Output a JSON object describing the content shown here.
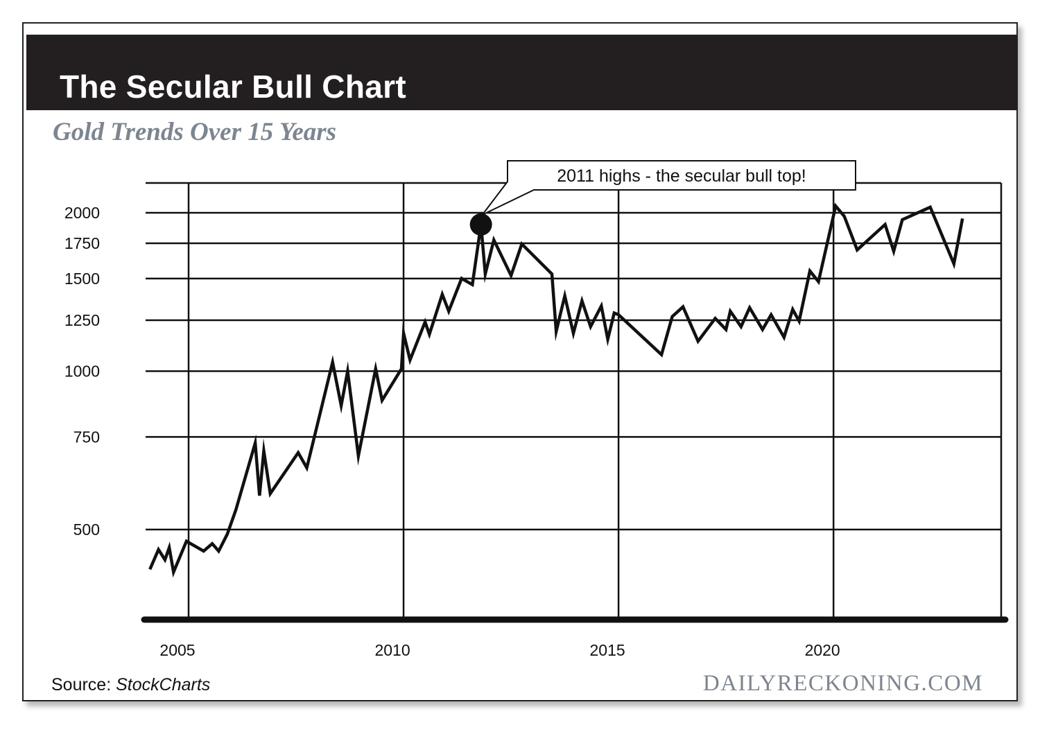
{
  "header": {
    "title": "The Secular Bull Chart",
    "subtitle": "Gold Trends Over 15 Years"
  },
  "footer": {
    "source_label": "Source:",
    "source_name": "StockCharts",
    "brand": "DAILYRECKONING.COM"
  },
  "annotation": {
    "text": "2011 highs - the secular bull top!",
    "x": 2011.8,
    "y": 1900
  },
  "chart_data": {
    "type": "line",
    "title": "The Secular Bull Chart",
    "subtitle": "Gold Trends Over 15 Years",
    "xlabel": "",
    "ylabel": "",
    "y_scale": "log",
    "xlim": [
      2004,
      2023.9
    ],
    "ylim": [
      350,
      2400
    ],
    "x_ticks": [
      2005,
      2010,
      2015,
      2020
    ],
    "y_ticks": [
      500,
      750,
      1000,
      1250,
      1500,
      1750,
      2000
    ],
    "grid": true,
    "series": [
      {
        "x": [
          2004.1,
          2004.3,
          2004.45,
          2004.55,
          2004.65,
          2004.95,
          2005.35,
          2005.55,
          2005.7,
          2005.9,
          2006.1,
          2006.55,
          2006.65,
          2006.75,
          2006.9,
          2007.55,
          2007.75,
          2008.35,
          2008.55,
          2008.7,
          2008.95,
          2009.35,
          2009.5,
          2009.95,
          2010.0,
          2010.15,
          2010.5,
          2010.6,
          2010.9,
          2011.05,
          2011.35,
          2011.6,
          2011.8,
          2011.9,
          2012.1,
          2012.5,
          2012.75,
          2013.45,
          2013.55,
          2013.75,
          2013.95,
          2014.15,
          2014.35,
          2014.6,
          2014.75,
          2014.9,
          2015.0,
          2016.0,
          2016.25,
          2016.5,
          2016.85,
          2017.25,
          2017.5,
          2017.6,
          2017.85,
          2018.05,
          2018.35,
          2018.55,
          2018.85,
          2019.05,
          2019.2,
          2019.45,
          2019.65,
          2020.05,
          2020.25,
          2020.55,
          2021.2,
          2021.4,
          2021.6,
          2022.25,
          2022.8,
          2023.0
        ],
        "y": [
          420,
          458,
          438,
          462,
          415,
          475,
          455,
          470,
          455,
          490,
          545,
          730,
          580,
          705,
          585,
          700,
          655,
          1040,
          860,
          1000,
          690,
          1010,
          880,
          1010,
          1180,
          1050,
          1240,
          1175,
          1400,
          1300,
          1500,
          1460,
          1900,
          1530,
          1775,
          1520,
          1745,
          1530,
          1190,
          1390,
          1180,
          1360,
          1215,
          1330,
          1150,
          1290,
          1280,
          1075,
          1270,
          1325,
          1140,
          1260,
          1200,
          1300,
          1215,
          1320,
          1200,
          1280,
          1160,
          1310,
          1245,
          1550,
          1480,
          2060,
          1970,
          1700,
          1900,
          1690,
          1940,
          2050,
          1600,
          1950
        ]
      }
    ]
  }
}
